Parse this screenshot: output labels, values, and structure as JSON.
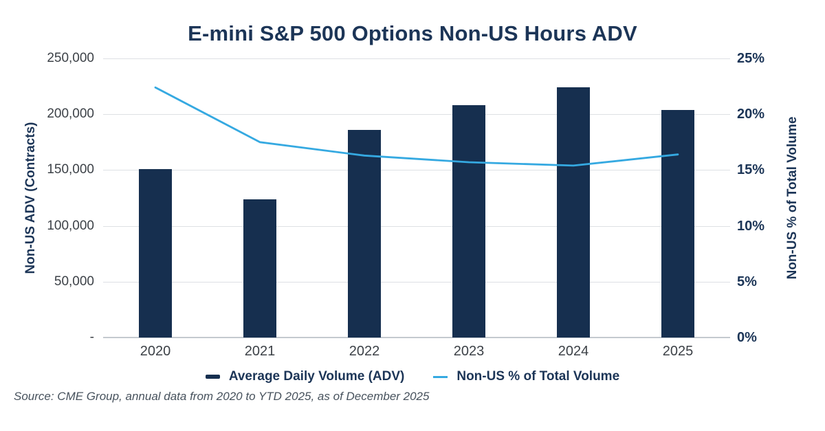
{
  "title": "E-mini S&P 500 Options Non-US Hours ADV",
  "source": "Source: CME Group, annual data from 2020 to YTD 2025, as of December 2025",
  "colors": {
    "navy": "#162F4F",
    "blue": "#35A9E1",
    "gridline": "#DDE0E4",
    "axis_line": "#C4C9CF",
    "tick_text": "#3C4147",
    "heading_text": "#1C3557",
    "source_text": "#47525D"
  },
  "legend": {
    "items": [
      {
        "label": "Average Daily Volume (ADV)",
        "marker": "navy-dash"
      },
      {
        "label": "Non-US % of Total Volume",
        "marker": "blue-line"
      }
    ]
  },
  "chart_data": {
    "type": "bar",
    "combo": "bar+line",
    "title": "E-mini S&P 500 Options Non-US Hours ADV",
    "categories": [
      "2020",
      "2021",
      "2022",
      "2023",
      "2024",
      "2025"
    ],
    "series": [
      {
        "name": "Average Daily Volume (ADV)",
        "type": "bar",
        "axis": "left",
        "values": [
          151000,
          124000,
          186000,
          208000,
          224000,
          204000
        ]
      },
      {
        "name": "Non-US % of Total Volume",
        "type": "line",
        "axis": "right",
        "values": [
          22.4,
          17.5,
          16.3,
          15.7,
          15.4,
          16.4
        ]
      }
    ],
    "left_axis": {
      "label": "Non-US ADV (Contracts)",
      "ticks": [
        "250,000",
        "200,000",
        "150,000",
        "100,000",
        "50,000",
        "-"
      ],
      "tick_values": [
        250000,
        200000,
        150000,
        100000,
        50000,
        0
      ],
      "min": 0,
      "max": 250000
    },
    "right_axis": {
      "label": "Non-US % of Total Volume",
      "ticks": [
        "25%",
        "20%",
        "15%",
        "10%",
        "5%",
        "0%"
      ],
      "tick_values": [
        25,
        20,
        15,
        10,
        5,
        0
      ],
      "min": 0,
      "max": 25
    },
    "grid": true,
    "legend_position": "bottom"
  }
}
